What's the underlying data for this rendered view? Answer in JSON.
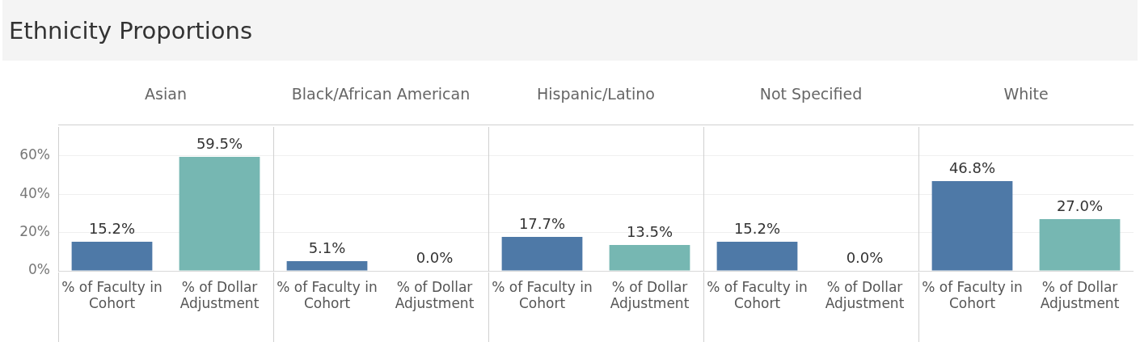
{
  "chart_data": [
    {
      "type": "other",
      "title": "Ethnicity Proportions"
    },
    {
      "type": "bar",
      "title": "Asian",
      "categories": [
        "% of Faculty in Cohort",
        "% of Dollar Adjustment"
      ],
      "values": [
        15.2,
        59.5
      ],
      "value_labels": [
        "15.2%",
        "59.5%"
      ],
      "colors": [
        "#4e79a7",
        "#76b7b2"
      ],
      "ylim": [
        0,
        75
      ],
      "yticks": [
        {
          "value": 0,
          "label": "0%"
        },
        {
          "value": 20,
          "label": "20%"
        },
        {
          "value": 40,
          "label": "40%"
        },
        {
          "value": 60,
          "label": "60%"
        }
      ],
      "grid": "y"
    },
    {
      "type": "bar",
      "title": "Black/African American",
      "categories": [
        "% of Faculty in Cohort",
        "% of Dollar Adjustment"
      ],
      "values": [
        5.1,
        0.0
      ],
      "value_labels": [
        "5.1%",
        "0.0%"
      ],
      "colors": [
        "#4e79a7",
        "#76b7b2"
      ],
      "ylim": [
        0,
        75
      ],
      "yticks": [
        {
          "value": 0,
          "label": null
        },
        {
          "value": 20,
          "label": null
        },
        {
          "value": 40,
          "label": null
        },
        {
          "value": 60,
          "label": null
        }
      ],
      "grid": "y",
      "tick_labels": "x"
    },
    {
      "type": "bar",
      "title": "Hispanic/Latino",
      "categories": [
        "% of Faculty in Cohort",
        "% of Dollar Adjustment"
      ],
      "values": [
        17.7,
        13.5
      ],
      "value_labels": [
        "17.7%",
        "13.5%"
      ],
      "colors": [
        "#4e79a7",
        "#76b7b2"
      ],
      "ylim": [
        0,
        75
      ],
      "yticks": [
        {
          "value": 0,
          "label": null
        },
        {
          "value": 20,
          "label": null
        },
        {
          "value": 40,
          "label": null
        },
        {
          "value": 60,
          "label": null
        }
      ],
      "grid": "y",
      "tick_labels": "x"
    },
    {
      "type": "bar",
      "title": "Not Specified",
      "categories": [
        "% of Faculty in Cohort",
        "% of Dollar Adjustment"
      ],
      "values": [
        15.2,
        0.0
      ],
      "value_labels": [
        "15.2%",
        "0.0%"
      ],
      "colors": [
        "#4e79a7",
        "#76b7b2"
      ],
      "ylim": [
        0,
        75
      ],
      "yticks": [
        {
          "value": 0,
          "label": null
        },
        {
          "value": 20,
          "label": null
        },
        {
          "value": 40,
          "label": null
        },
        {
          "value": 60,
          "label": null
        }
      ],
      "grid": "y",
      "tick_labels": "x"
    },
    {
      "type": "bar",
      "title": "White",
      "categories": [
        "% of Faculty in Cohort",
        "% of Dollar Adjustment"
      ],
      "values": [
        46.8,
        27.0
      ],
      "value_labels": [
        "46.8%",
        "27.0%"
      ],
      "colors": [
        "#4e79a7",
        "#76b7b2"
      ],
      "ylim": [
        0,
        75
      ],
      "yticks": [
        {
          "value": 0,
          "label": null
        },
        {
          "value": 20,
          "label": null
        },
        {
          "value": 40,
          "label": null
        },
        {
          "value": 60,
          "label": null
        }
      ],
      "grid": "y",
      "tick_labels": "x"
    }
  ]
}
